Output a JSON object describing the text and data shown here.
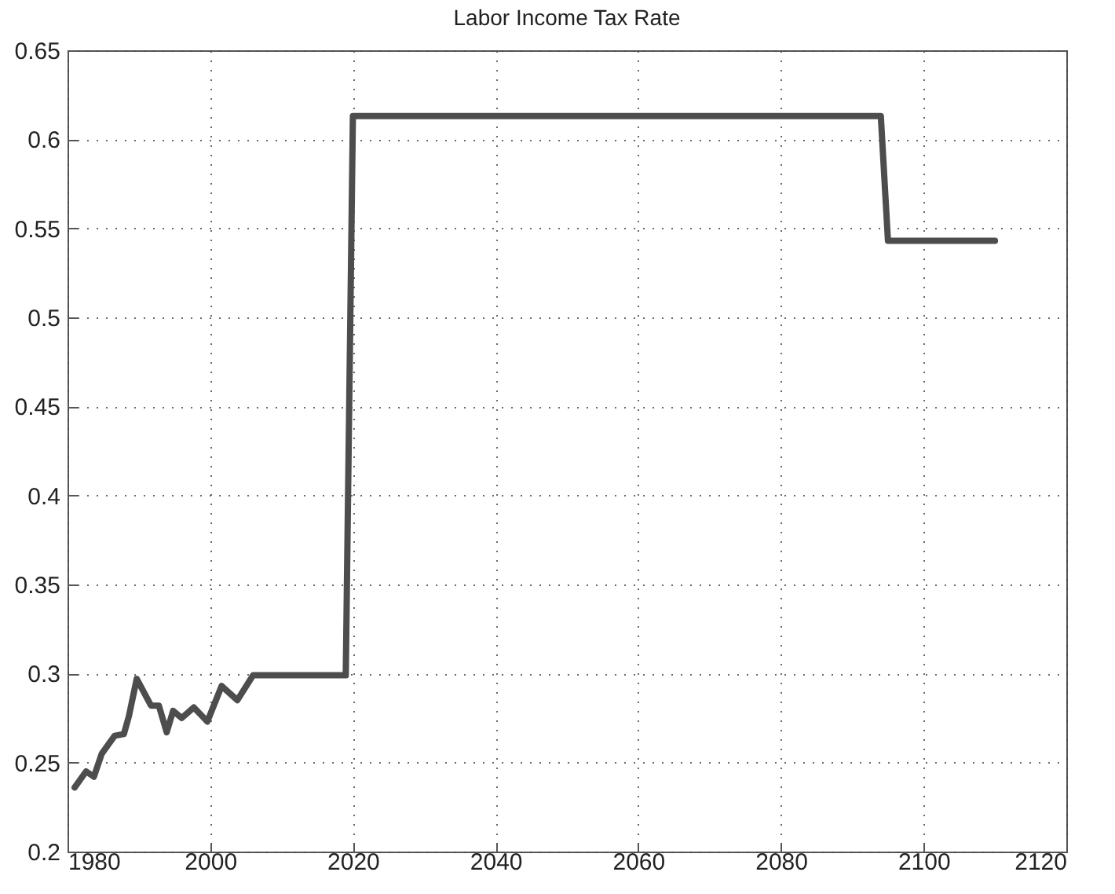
{
  "chart_data": {
    "type": "line",
    "title": "Labor Income Tax Rate",
    "x": [
      1981,
      1982.6,
      1983.7,
      1984.8,
      1986.6,
      1987.9,
      1988.6,
      1989.7,
      1991.7,
      1992.8,
      1993.9,
      1994.8,
      1996,
      1997.7,
      1999.6,
      2001.6,
      2003.8,
      2006,
      2019,
      2020,
      2094,
      2095,
      2110
    ],
    "series": [
      {
        "color": "#4d4d4d",
        "values": [
          0.236,
          0.245,
          0.242,
          0.255,
          0.265,
          0.266,
          0.276,
          0.297,
          0.282,
          0.282,
          0.267,
          0.279,
          0.275,
          0.281,
          0.273,
          0.293,
          0.285,
          0.299,
          0.299,
          0.613,
          0.613,
          0.543,
          0.543
        ]
      }
    ],
    "xlim": [
      1980,
      2120
    ],
    "xticks": [
      1980,
      2000,
      2020,
      2040,
      2060,
      2080,
      2100,
      2120
    ],
    "ylim": [
      0.2,
      0.65
    ],
    "yticks": [
      0.2,
      0.25,
      0.3,
      0.35,
      0.4,
      0.45,
      0.5,
      0.55,
      0.6,
      0.65
    ],
    "grid": true,
    "line_style": "solid"
  }
}
